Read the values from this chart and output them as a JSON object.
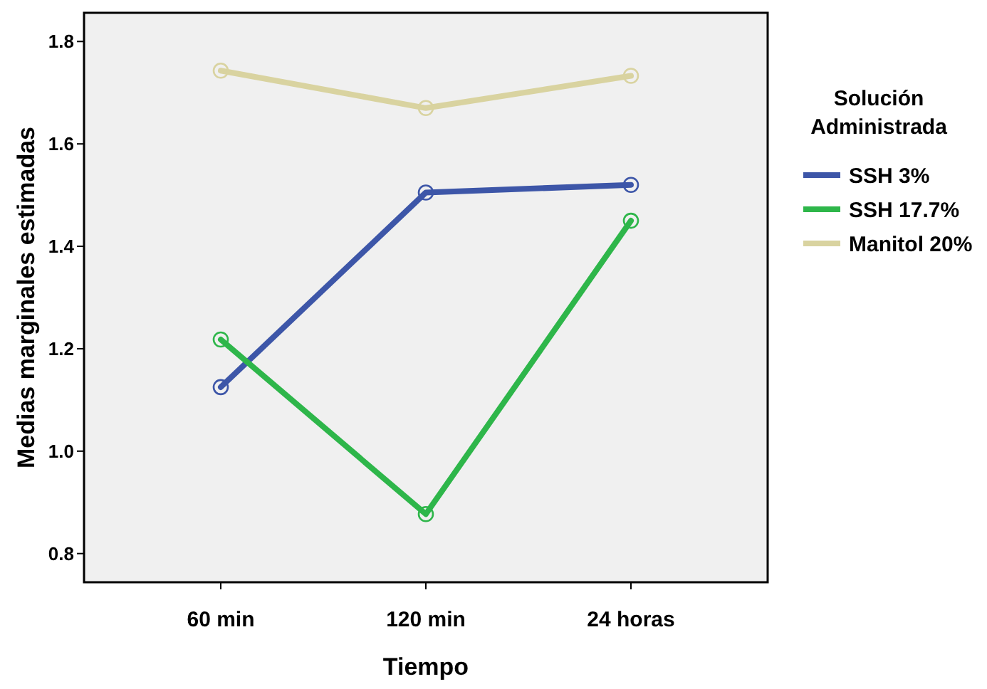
{
  "chart_data": {
    "type": "line",
    "xlabel": "Tiempo",
    "ylabel": "Medias marginales estimadas",
    "legend_title": "Solución Administrada",
    "legend": "right",
    "marker": "circle",
    "grid": false,
    "categories": [
      "60 min",
      "120 min",
      "24 horas"
    ],
    "ylim": [
      0.744,
      1.856
    ],
    "yticks": [
      {
        "value": 0.8,
        "label": "0.8"
      },
      {
        "value": 1.0,
        "label": "1.0"
      },
      {
        "value": 1.2,
        "label": "1.2"
      },
      {
        "value": 1.4,
        "label": "1.4"
      },
      {
        "value": 1.6,
        "label": "1.6"
      },
      {
        "value": 1.8,
        "label": "1.8"
      }
    ],
    "series": [
      {
        "name": "SSH 3%",
        "color": "#3d56a8",
        "values": [
          1.125,
          1.505,
          1.52
        ]
      },
      {
        "name": "SSH 17.7%",
        "color": "#2eb64a",
        "values": [
          1.218,
          0.877,
          1.45
        ]
      },
      {
        "name": "Manitol 20%",
        "color": "#d9d3a0",
        "values": [
          1.743,
          1.67,
          1.733
        ]
      }
    ]
  }
}
